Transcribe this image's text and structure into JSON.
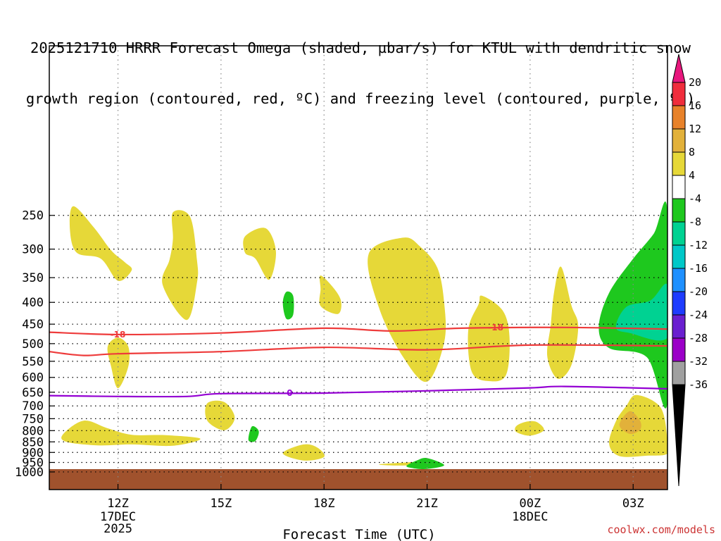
{
  "title": {
    "line1": "2025121710 HRRR Forecast Omega (shaded, µbar/s) for KTUL with dendritic snow",
    "line2": "growth region (contoured, red, ºC) and freezing level (contoured, purple, ºC)"
  },
  "credit": "coolwx.com/models",
  "colors": {
    "positive_4_8": "#e6d838",
    "positive_8_12": "#e2b13a",
    "positive_12_16": "#e8902e",
    "negative_m4_m8": "#1ec81e",
    "negative_m8_m12": "#00d292",
    "dgz_contour": "#ee3b3b",
    "freezing_contour": "#9400d3",
    "ground": "#a0522d"
  },
  "chart_data": {
    "type": "time-height contour",
    "title": "2025121710 HRRR Forecast Omega (shaded, µbar/s) for KTUL with dendritic snow growth region (contoured, red, ºC) and freezing level (contoured, purple, ºC)",
    "xlabel": "Forecast Time (UTC)",
    "ylabel": "Pressure (mb)",
    "x_ticks": [
      {
        "hour": 12,
        "label": "12Z",
        "sub1": "17DEC",
        "sub2": "2025"
      },
      {
        "hour": 15,
        "label": "15Z"
      },
      {
        "hour": 18,
        "label": "18Z"
      },
      {
        "hour": 21,
        "label": "21Z"
      },
      {
        "hour": 24,
        "label": "00Z",
        "sub1": "18DEC"
      },
      {
        "hour": 27,
        "label": "03Z"
      }
    ],
    "xlim": [
      10,
      28
    ],
    "y_ticks": [
      "250",
      "300",
      "350",
      "400",
      "450",
      "500",
      "550",
      "600",
      "650",
      "700",
      "750",
      "800",
      "850",
      "900",
      "950",
      "1000"
    ],
    "ylim": [
      1000,
      200
    ],
    "colorbar": {
      "labels": [
        "20",
        "16",
        "12",
        "8",
        "4",
        "-4",
        "-8",
        "-12",
        "-16",
        "-20",
        "-24",
        "-28",
        "-32",
        "-36"
      ],
      "colors": [
        "#f02d3c",
        "#e8822a",
        "#e2b13a",
        "#e6d838",
        "#ffffff",
        "#1ec81e",
        "#00d292",
        "#00c8c8",
        "#1e90ff",
        "#1e3cff",
        "#6a1fd0",
        "#9b00c8",
        "#a0a0a0"
      ],
      "top_arrow_color": "#e8177d",
      "bottom_arrow_color": "#000000"
    },
    "contours": [
      {
        "name": "dgz_upper",
        "value": "-18",
        "color": "#ee3b3b",
        "points": [
          [
            10,
            470
          ],
          [
            12,
            476
          ],
          [
            15,
            472
          ],
          [
            18,
            460
          ],
          [
            20,
            467
          ],
          [
            22,
            460
          ],
          [
            25,
            458
          ],
          [
            28,
            462
          ]
        ]
      },
      {
        "name": "dgz_lower",
        "value": "-12",
        "color": "#ee3b3b",
        "points": [
          [
            10,
            522
          ],
          [
            11,
            533
          ],
          [
            12,
            528
          ],
          [
            15,
            522
          ],
          [
            18,
            510
          ],
          [
            21,
            517
          ],
          [
            24,
            504
          ],
          [
            28,
            506
          ]
        ]
      },
      {
        "name": "freezing_level",
        "value": "0",
        "color": "#9400d3",
        "points": [
          [
            10,
            662
          ],
          [
            12,
            665
          ],
          [
            14,
            665
          ],
          [
            15,
            655
          ],
          [
            18,
            653
          ],
          [
            21,
            645
          ],
          [
            24,
            635
          ],
          [
            25,
            630
          ],
          [
            28,
            638
          ]
        ]
      }
    ],
    "contour_labels": [
      {
        "text": "-18",
        "hour": 12,
        "pressure": 476,
        "color": "#ee3b3b"
      },
      {
        "text": "-18",
        "hour": 23,
        "pressure": 458,
        "color": "#ee3b3b"
      },
      {
        "text": "0",
        "hour": 17,
        "pressure": 653,
        "color": "#9400d3"
      }
    ],
    "omega_regions": [
      {
        "level": "+4 to +8",
        "color": "#e6d838",
        "points": [
          [
            10.7,
            238
          ],
          [
            11.3,
            267
          ],
          [
            11.8,
            302
          ],
          [
            12.2,
            322
          ],
          [
            12.4,
            336
          ],
          [
            12.0,
            356
          ],
          [
            11.5,
            316
          ],
          [
            10.8,
            306
          ],
          [
            10.6,
            270
          ]
        ]
      },
      {
        "level": "+4 to +8",
        "color": "#e6d838",
        "points": [
          [
            13.6,
            246
          ],
          [
            14.1,
            252
          ],
          [
            14.3,
            318
          ],
          [
            14.3,
            360
          ],
          [
            14.0,
            440
          ],
          [
            13.3,
            364
          ],
          [
            13.5,
            318
          ],
          [
            13.6,
            284
          ]
        ]
      },
      {
        "level": "+4 to +8",
        "color": "#e6d838",
        "points": [
          [
            15.7,
            280
          ],
          [
            16.3,
            268
          ],
          [
            16.6,
            304
          ],
          [
            16.4,
            354
          ],
          [
            16.0,
            316
          ],
          [
            15.7,
            306
          ]
        ]
      },
      {
        "level": "-4 to -8",
        "color": "#1ec81e",
        "points": [
          [
            16.9,
            378
          ],
          [
            17.1,
            386
          ],
          [
            17.1,
            428
          ],
          [
            16.9,
            437
          ],
          [
            16.8,
            402
          ]
        ]
      },
      {
        "level": "+4 to +8",
        "color": "#e6d838",
        "points": [
          [
            17.9,
            346
          ],
          [
            18.3,
            372
          ],
          [
            18.5,
            399
          ],
          [
            18.4,
            426
          ],
          [
            17.9,
            408
          ],
          [
            17.9,
            372
          ]
        ]
      },
      {
        "level": "+4 to +8",
        "color": "#e6d838",
        "points": [
          [
            20.3,
            282
          ],
          [
            20.8,
            296
          ],
          [
            21.3,
            332
          ],
          [
            21.5,
            402
          ],
          [
            21.5,
            496
          ],
          [
            21.0,
            614
          ],
          [
            20.3,
            537
          ],
          [
            19.6,
            412
          ],
          [
            19.3,
            308
          ]
        ]
      },
      {
        "level": "+4 to +8",
        "color": "#e6d838",
        "points": [
          [
            12.0,
            484
          ],
          [
            12.3,
            508
          ],
          [
            12.3,
            566
          ],
          [
            12.0,
            636
          ],
          [
            11.8,
            566
          ],
          [
            11.7,
            508
          ]
        ]
      },
      {
        "level": "+4 to +8",
        "color": "#e6d838",
        "points": [
          [
            22.6,
            386
          ],
          [
            23.2,
            418
          ],
          [
            23.4,
            482
          ],
          [
            23.3,
            592
          ],
          [
            22.8,
            612
          ],
          [
            22.3,
            582
          ],
          [
            22.2,
            464
          ],
          [
            22.5,
            404
          ]
        ]
      },
      {
        "level": "+4 to +8",
        "color": "#e6d838",
        "points": [
          [
            24.9,
            330
          ],
          [
            25.2,
            406
          ],
          [
            25.4,
            456
          ],
          [
            25.2,
            562
          ],
          [
            24.8,
            604
          ],
          [
            24.5,
            536
          ],
          [
            24.6,
            452
          ],
          [
            24.7,
            378
          ]
        ]
      },
      {
        "level": "-4 to -8",
        "color": "#1ec81e",
        "points": [
          [
            28,
            244
          ],
          [
            27.6,
            276
          ],
          [
            27.0,
            316
          ],
          [
            26.3,
            380
          ],
          [
            26.0,
            458
          ],
          [
            26.3,
            512
          ],
          [
            27.4,
            538
          ],
          [
            28,
            688
          ]
        ]
      },
      {
        "level": "-8 to -12",
        "color": "#00d292",
        "points": [
          [
            28,
            364
          ],
          [
            27.5,
            396
          ],
          [
            26.8,
            410
          ],
          [
            26.5,
            458
          ],
          [
            26.9,
            472
          ],
          [
            28,
            484
          ]
        ]
      },
      {
        "level": "+4 to +8",
        "color": "#e6d838",
        "points": [
          [
            14.6,
            690
          ],
          [
            15.1,
            686
          ],
          [
            15.4,
            746
          ],
          [
            15.1,
            798
          ],
          [
            14.6,
            758
          ]
        ]
      },
      {
        "level": "+4 to +8",
        "color": "#e6d838",
        "points": [
          [
            11.0,
            758
          ],
          [
            11.7,
            790
          ],
          [
            12.4,
            818
          ],
          [
            13.4,
            820
          ],
          [
            14.4,
            836
          ],
          [
            13.6,
            868
          ],
          [
            12.4,
            862
          ],
          [
            11.4,
            866
          ],
          [
            10.5,
            850
          ],
          [
            10.4,
            816
          ]
        ]
      },
      {
        "level": "-4 to -8",
        "color": "#1ec81e",
        "points": [
          [
            15.9,
            782
          ],
          [
            16.1,
            802
          ],
          [
            16.0,
            846
          ],
          [
            15.8,
            842
          ]
        ]
      },
      {
        "level": "+4 to +8",
        "color": "#e6d838",
        "points": [
          [
            17.4,
            862
          ],
          [
            17.8,
            876
          ],
          [
            18.0,
            922
          ],
          [
            17.4,
            940
          ],
          [
            16.8,
            904
          ]
        ]
      },
      {
        "level": "+4 to +8",
        "color": "#e6d838",
        "points": [
          [
            21.1,
            944
          ],
          [
            20.4,
            950
          ],
          [
            19.6,
            960
          ],
          [
            20.2,
            966
          ],
          [
            21.1,
            958
          ]
        ]
      },
      {
        "level": "-4 to -8",
        "color": "#1ec81e",
        "points": [
          [
            21.0,
            928
          ],
          [
            21.5,
            964
          ],
          [
            21.0,
            984
          ],
          [
            20.6,
            980
          ],
          [
            20.4,
            968
          ],
          [
            20.7,
            940
          ]
        ]
      },
      {
        "level": "+4 to +8",
        "color": "#e6d838",
        "points": [
          [
            24.2,
            764
          ],
          [
            24.4,
            798
          ],
          [
            24.0,
            822
          ],
          [
            23.6,
            806
          ],
          [
            23.6,
            780
          ],
          [
            23.9,
            762
          ]
        ]
      },
      {
        "level": "+4 to +8",
        "color": "#e6d838",
        "points": [
          [
            27.1,
            660
          ],
          [
            27.8,
            706
          ],
          [
            28,
            842
          ],
          [
            28,
            906
          ],
          [
            27.4,
            916
          ],
          [
            26.6,
            918
          ],
          [
            26.3,
            858
          ],
          [
            26.5,
            760
          ],
          [
            26.8,
            700
          ]
        ]
      },
      {
        "level": "+8 to +12",
        "color": "#e2b13a",
        "points": [
          [
            26.9,
            720
          ],
          [
            27.2,
            758
          ],
          [
            27.2,
            796
          ],
          [
            26.9,
            814
          ],
          [
            26.6,
            776
          ]
        ]
      }
    ],
    "ground": {
      "color": "#a0522d",
      "pressure_top": 985
    }
  }
}
